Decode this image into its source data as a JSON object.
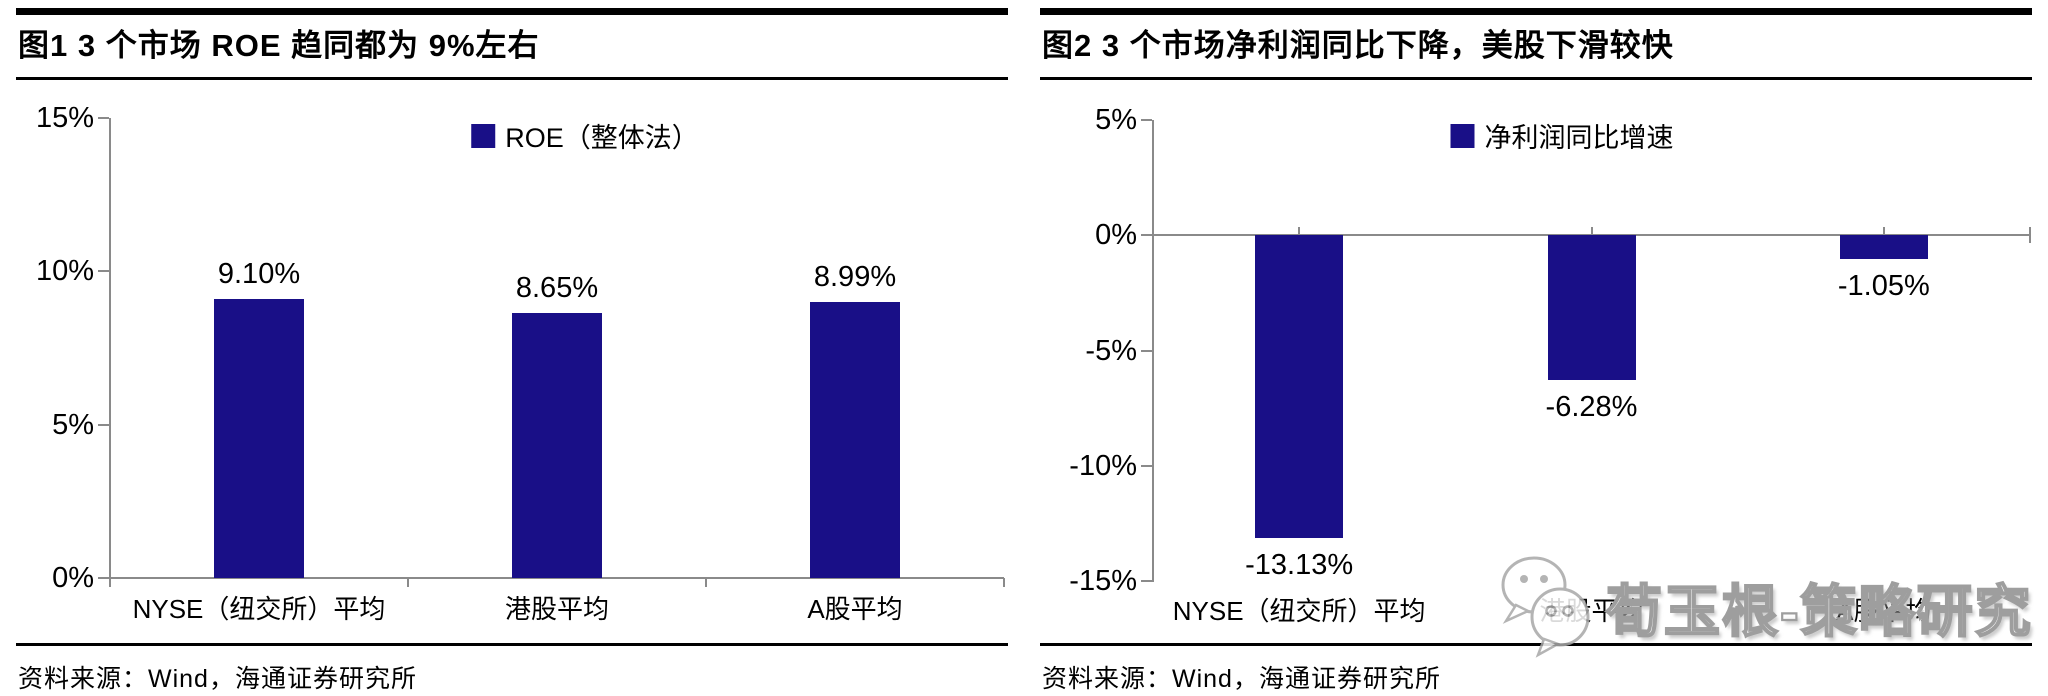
{
  "panels": [
    {
      "title": "图1  3 个市场 ROE 趋同都为 9%左右",
      "source": "资料来源：Wind，海通证券研究所"
    },
    {
      "title": "图2  3 个市场净利润同比下降，美股下滑较快",
      "source": "资料来源：Wind，海通证券研究所"
    }
  ],
  "chart_data": [
    {
      "type": "bar",
      "title": "图1  3 个市场 ROE 趋同都为 9%左右",
      "legend": [
        "ROE（整体法）"
      ],
      "legend_position": "top-center",
      "categories": [
        "NYSE（纽交所）平均",
        "港股平均",
        "A股平均"
      ],
      "series": [
        {
          "name": "ROE（整体法）",
          "values": [
            9.1,
            8.65,
            8.99
          ],
          "labels": [
            "9.10%",
            "8.65%",
            "8.99%"
          ]
        }
      ],
      "ylim": [
        0,
        15
      ],
      "yticks": [
        15,
        10,
        5,
        0
      ],
      "ytick_labels": [
        "15%",
        "10%",
        "5%",
        "0%"
      ],
      "xlabel": "",
      "ylabel": "",
      "grid": false,
      "bar_color": "#190f87"
    },
    {
      "type": "bar",
      "title": "图2  3 个市场净利润同比下降，美股下滑较快",
      "legend": [
        "净利润同比增速"
      ],
      "legend_position": "top-center",
      "categories": [
        "NYSE（纽交所）平均",
        "港股平均",
        "A股平均"
      ],
      "series": [
        {
          "name": "净利润同比增速",
          "values": [
            -13.13,
            -6.28,
            -1.05
          ],
          "labels": [
            "-13.13%",
            "-6.28%",
            "-1.05%"
          ]
        }
      ],
      "ylim": [
        -15,
        5
      ],
      "yticks": [
        5,
        0,
        -5,
        -10,
        -15
      ],
      "ytick_labels": [
        "5%",
        "0%",
        "-5%",
        "-10%",
        "-15%"
      ],
      "xlabel": "",
      "ylabel": "",
      "grid": false,
      "bar_color": "#190f87"
    }
  ],
  "watermark": {
    "text": "荀玉根-策略研究",
    "icon": "wechat-icon"
  },
  "colors": {
    "bar": "#190f87",
    "axis_line": "#8a8a8a",
    "text": "#000000",
    "watermark_stroke": "#9e9e9e"
  }
}
